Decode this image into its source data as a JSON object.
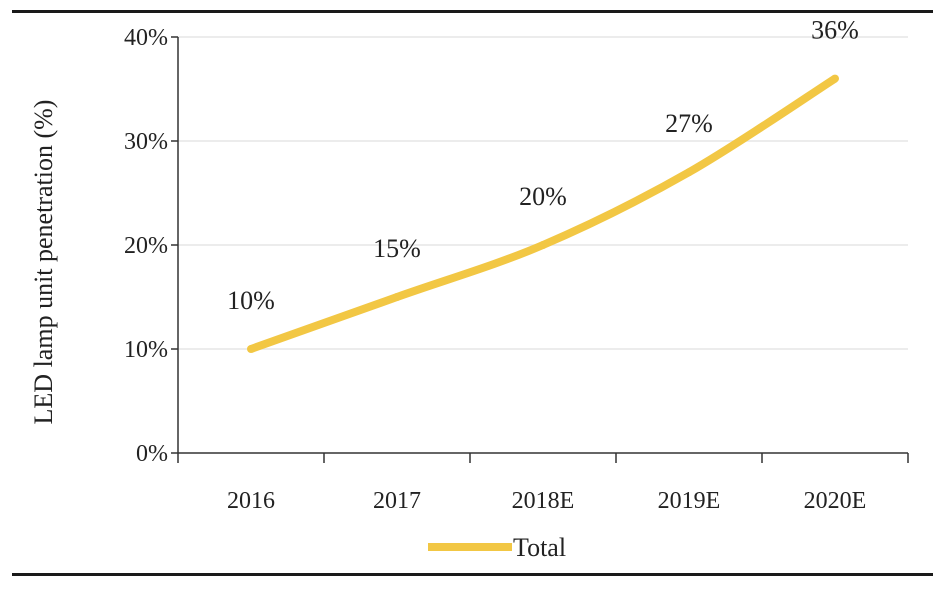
{
  "chart_data": {
    "type": "line",
    "categories": [
      "2016",
      "2017",
      "2018E",
      "2019E",
      "2020E"
    ],
    "series": [
      {
        "name": "Total",
        "values": [
          10,
          15,
          20,
          27,
          36
        ],
        "color": "#F2C744"
      }
    ],
    "data_labels": [
      "10%",
      "15%",
      "20%",
      "27%",
      "36%"
    ],
    "ylabel": "LED lamp unit penetration (%)",
    "ylim": [
      0,
      40
    ],
    "yticks": [
      0,
      10,
      20,
      30,
      40
    ],
    "ytick_labels": [
      "0%",
      "10%",
      "20%",
      "30%",
      "40%"
    ],
    "grid": true,
    "legend": {
      "position": "bottom-center",
      "entries": [
        "Total"
      ]
    }
  }
}
